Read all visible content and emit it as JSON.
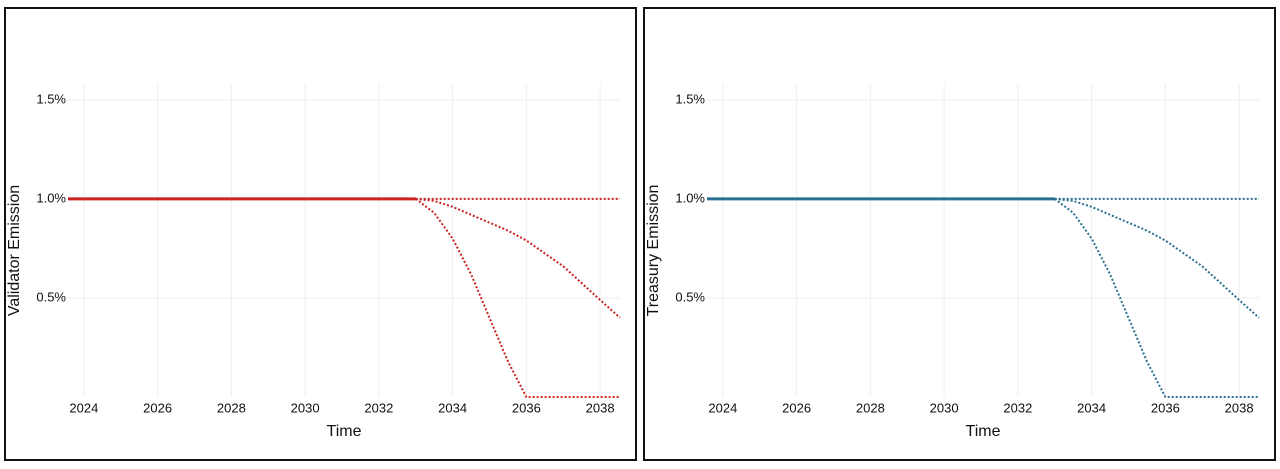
{
  "chart_data": [
    {
      "type": "line",
      "x_label": "Time",
      "y_label": "Validator Emission",
      "x": [
        2023.57,
        2033,
        2033.5,
        2034,
        2034.5,
        2035,
        2035.5,
        2036,
        2037,
        2038,
        2038.54
      ],
      "xlim": [
        2023.57,
        2038.54
      ],
      "xticks": [
        2024,
        2026,
        2028,
        2030,
        2032,
        2034,
        2036,
        2038
      ],
      "ylim": [
        0,
        1.58
      ],
      "yticks": [
        {
          "value": 0.5,
          "label": "0.5%"
        },
        {
          "value": 1.0,
          "label": "1.0%"
        },
        {
          "value": 1.5,
          "label": "1.5%"
        }
      ],
      "grid": true,
      "series": [
        {
          "color": "#cc2222",
          "style": "solid",
          "values": [
            1,
            1,
            null,
            null,
            null,
            null,
            null,
            null,
            null,
            null,
            null
          ]
        },
        {
          "color": "#cc2222",
          "style": "dotted",
          "values": [
            null,
            1,
            1,
            1,
            1,
            1,
            1,
            1,
            1,
            1,
            1
          ]
        },
        {
          "color": "#cc2222",
          "style": "dotted",
          "values": [
            null,
            1,
            0.99,
            0.96,
            0.92,
            0.88,
            0.84,
            0.79,
            0.66,
            0.49,
            0.4
          ]
        },
        {
          "color": "#cc2222",
          "style": "dotted",
          "values": [
            null,
            1,
            0.93,
            0.8,
            0.62,
            0.4,
            0.18,
            0,
            0,
            0,
            0
          ]
        }
      ]
    },
    {
      "type": "line",
      "x_label": "Time",
      "y_label": "Treasury Emission",
      "x": [
        2023.57,
        2033,
        2033.5,
        2034,
        2034.5,
        2035,
        2035.5,
        2036,
        2037,
        2038,
        2038.54
      ],
      "xlim": [
        2023.57,
        2038.54
      ],
      "xticks": [
        2024,
        2026,
        2028,
        2030,
        2032,
        2034,
        2036,
        2038
      ],
      "ylim": [
        0,
        1.58
      ],
      "yticks": [
        {
          "value": 0.5,
          "label": "0.5%"
        },
        {
          "value": 1.0,
          "label": "1.0%"
        },
        {
          "value": 1.5,
          "label": "1.5%"
        }
      ],
      "grid": true,
      "series": [
        {
          "color": "#2a7090",
          "style": "solid",
          "values": [
            1,
            1,
            null,
            null,
            null,
            null,
            null,
            null,
            null,
            null,
            null
          ]
        },
        {
          "color": "#2a7090",
          "style": "dotted",
          "values": [
            null,
            1,
            1,
            1,
            1,
            1,
            1,
            1,
            1,
            1,
            1
          ]
        },
        {
          "color": "#2a7090",
          "style": "dotted",
          "values": [
            null,
            1,
            0.99,
            0.96,
            0.92,
            0.88,
            0.84,
            0.79,
            0.66,
            0.49,
            0.4
          ]
        },
        {
          "color": "#2a7090",
          "style": "dotted",
          "values": [
            null,
            1,
            0.93,
            0.8,
            0.62,
            0.4,
            0.18,
            0,
            0,
            0,
            0
          ]
        }
      ]
    }
  ]
}
